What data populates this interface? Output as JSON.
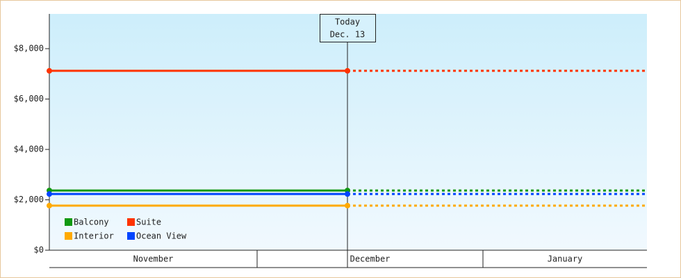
{
  "chart_data": {
    "type": "line",
    "months": [
      "November",
      "December",
      "January"
    ],
    "marker": {
      "label": "Today",
      "date": "Dec. 13"
    },
    "ylim": [
      0,
      9380
    ],
    "yticks": [
      {
        "value": 0,
        "label": "$0"
      },
      {
        "value": 2000,
        "label": "$2,000"
      },
      {
        "value": 4000,
        "label": "$4,000"
      },
      {
        "value": 6000,
        "label": "$6,000"
      },
      {
        "value": 8000,
        "label": "$8,000"
      }
    ],
    "series": [
      {
        "name": "Balcony",
        "color": "#119911",
        "value": 2370
      },
      {
        "name": "Suite",
        "color": "#ff3300",
        "value": 7120
      },
      {
        "name": "Interior",
        "color": "#ffaa00",
        "value": 1770
      },
      {
        "name": "Ocean View",
        "color": "#0044ff",
        "value": 2230
      }
    ]
  }
}
